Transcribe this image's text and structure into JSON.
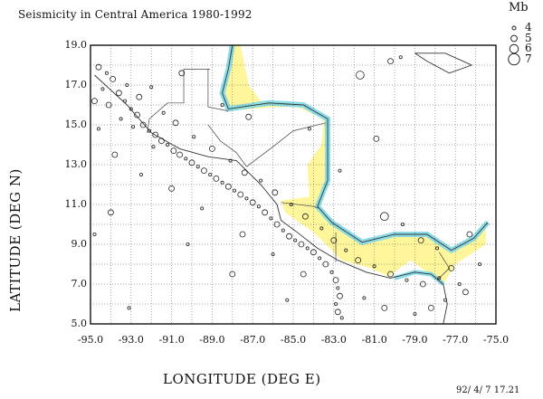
{
  "chart_data": {
    "type": "scatter",
    "title": "Seismicity in Central America 1980-1992",
    "xlabel": "LONGITUDE (DEG E)",
    "ylabel": "LATITUDE (DEG N)",
    "xlim": [
      -95.0,
      -75.0
    ],
    "ylim": [
      5.0,
      19.0
    ],
    "x_ticks": [
      "-95.0",
      "-93.0",
      "-91.0",
      "-89.0",
      "-87.0",
      "-85.0",
      "-83.0",
      "-81.0",
      "-79.0",
      "-77.0",
      "-75.0"
    ],
    "y_ticks": [
      "19.0",
      "17.0",
      "15.0",
      "13.0",
      "11.0",
      "9.0",
      "7.0",
      "5.0"
    ],
    "grid": true,
    "legend": {
      "title": "Mb",
      "placement": "top-right",
      "entries": [
        {
          "label": "4",
          "mb": 4
        },
        {
          "label": "5",
          "mb": 5
        },
        {
          "label": "6",
          "mb": 6
        },
        {
          "label": "7",
          "mb": 7
        }
      ]
    },
    "marker_color": "#222222",
    "land_color": "#fff27a",
    "shelf_color": "#7fd8e6",
    "coast_color": "#333333",
    "series": [
      {
        "points": [
          [
            -94.6,
            17.9,
            5
          ],
          [
            -94.2,
            17.6,
            4
          ],
          [
            -93.9,
            17.3,
            5
          ],
          [
            -94.4,
            16.8,
            4
          ],
          [
            -93.6,
            16.6,
            5
          ],
          [
            -93.3,
            16.2,
            4
          ],
          [
            -94.1,
            16.0,
            5
          ],
          [
            -93.0,
            15.8,
            4
          ],
          [
            -92.7,
            15.5,
            5
          ],
          [
            -93.5,
            15.3,
            4
          ],
          [
            -92.4,
            15.0,
            5
          ],
          [
            -92.1,
            14.7,
            4
          ],
          [
            -91.8,
            14.5,
            5
          ],
          [
            -92.9,
            14.9,
            4
          ],
          [
            -91.5,
            14.2,
            5
          ],
          [
            -91.2,
            14.0,
            4
          ],
          [
            -90.9,
            13.7,
            5
          ],
          [
            -91.9,
            13.9,
            4
          ],
          [
            -90.6,
            13.5,
            5
          ],
          [
            -90.3,
            13.3,
            4
          ],
          [
            -90.0,
            13.1,
            5
          ],
          [
            -89.7,
            12.9,
            4
          ],
          [
            -89.4,
            12.7,
            5
          ],
          [
            -89.1,
            12.5,
            4
          ],
          [
            -88.8,
            12.3,
            5
          ],
          [
            -88.5,
            12.1,
            4
          ],
          [
            -88.2,
            11.9,
            5
          ],
          [
            -87.9,
            11.7,
            4
          ],
          [
            -87.6,
            11.5,
            5
          ],
          [
            -87.3,
            11.3,
            4
          ],
          [
            -87.0,
            11.1,
            5
          ],
          [
            -86.7,
            10.9,
            4
          ],
          [
            -86.4,
            10.6,
            5
          ],
          [
            -86.1,
            10.3,
            4
          ],
          [
            -85.8,
            10.0,
            5
          ],
          [
            -85.5,
            9.7,
            4
          ],
          [
            -85.2,
            9.4,
            5
          ],
          [
            -84.9,
            9.2,
            4
          ],
          [
            -84.6,
            9.0,
            5
          ],
          [
            -84.3,
            8.8,
            4
          ],
          [
            -84.0,
            8.6,
            5
          ],
          [
            -83.7,
            8.3,
            4
          ],
          [
            -83.4,
            8.0,
            5
          ],
          [
            -83.1,
            7.6,
            4
          ],
          [
            -82.9,
            7.2,
            5
          ],
          [
            -82.8,
            6.8,
            4
          ],
          [
            -82.7,
            6.4,
            5
          ],
          [
            -82.9,
            6.0,
            4
          ],
          [
            -82.8,
            5.6,
            5
          ],
          [
            -82.6,
            5.3,
            4
          ],
          [
            -93.2,
            17.0,
            4
          ],
          [
            -92.6,
            16.4,
            5
          ],
          [
            -91.4,
            15.6,
            4
          ],
          [
            -90.8,
            15.1,
            5
          ],
          [
            -89.9,
            14.4,
            4
          ],
          [
            -89.0,
            13.8,
            5
          ],
          [
            -88.1,
            13.2,
            4
          ],
          [
            -87.4,
            12.6,
            5
          ],
          [
            -86.6,
            12.2,
            4
          ],
          [
            -85.9,
            11.6,
            5
          ],
          [
            -85.1,
            11.0,
            4
          ],
          [
            -84.4,
            10.4,
            5
          ],
          [
            -83.6,
            9.8,
            4
          ],
          [
            -83.0,
            9.2,
            5
          ],
          [
            -82.4,
            8.7,
            4
          ],
          [
            -81.8,
            8.2,
            5
          ],
          [
            -81.0,
            7.9,
            4
          ],
          [
            -80.2,
            7.5,
            5
          ],
          [
            -79.4,
            7.2,
            4
          ],
          [
            -78.6,
            7.0,
            5
          ],
          [
            -77.8,
            7.3,
            4
          ],
          [
            -77.2,
            7.8,
            5
          ],
          [
            -76.8,
            7.0,
            4
          ],
          [
            -76.5,
            6.6,
            5
          ],
          [
            -77.5,
            6.2,
            4
          ],
          [
            -78.2,
            5.8,
            5
          ],
          [
            -79.0,
            5.5,
            4
          ],
          [
            -80.5,
            5.8,
            5
          ],
          [
            -81.5,
            6.3,
            4
          ],
          [
            -84.5,
            7.5,
            5
          ],
          [
            -86.0,
            8.5,
            4
          ],
          [
            -87.5,
            9.5,
            5
          ],
          [
            -89.5,
            10.8,
            4
          ],
          [
            -91.0,
            11.8,
            5
          ],
          [
            -92.5,
            12.5,
            4
          ],
          [
            -93.8,
            13.5,
            5
          ],
          [
            -94.6,
            14.8,
            4
          ],
          [
            -94.8,
            16.2,
            5
          ],
          [
            -92.0,
            16.9,
            4
          ],
          [
            -90.5,
            17.6,
            5
          ],
          [
            -88.5,
            16.0,
            4
          ],
          [
            -87.2,
            15.4,
            5
          ],
          [
            -84.2,
            14.8,
            4
          ],
          [
            -81.7,
            17.5,
            6
          ],
          [
            -80.2,
            18.2,
            5
          ],
          [
            -79.7,
            18.4,
            4
          ],
          [
            -80.9,
            14.3,
            5
          ],
          [
            -82.7,
            12.7,
            4
          ],
          [
            -80.5,
            10.4,
            6
          ],
          [
            -79.6,
            10.0,
            4
          ],
          [
            -78.7,
            9.2,
            5
          ],
          [
            -77.9,
            8.8,
            4
          ],
          [
            -76.3,
            9.5,
            5
          ],
          [
            -75.8,
            8.0,
            4
          ],
          [
            -94.0,
            10.6,
            5
          ],
          [
            -93.1,
            5.8,
            4
          ],
          [
            -94.8,
            9.5,
            4
          ],
          [
            -88.0,
            7.5,
            5
          ],
          [
            -85.3,
            6.2,
            4
          ],
          [
            -90.2,
            9.0,
            4
          ]
        ]
      }
    ],
    "footer_stamp": "92/ 4/ 7  17.21"
  }
}
